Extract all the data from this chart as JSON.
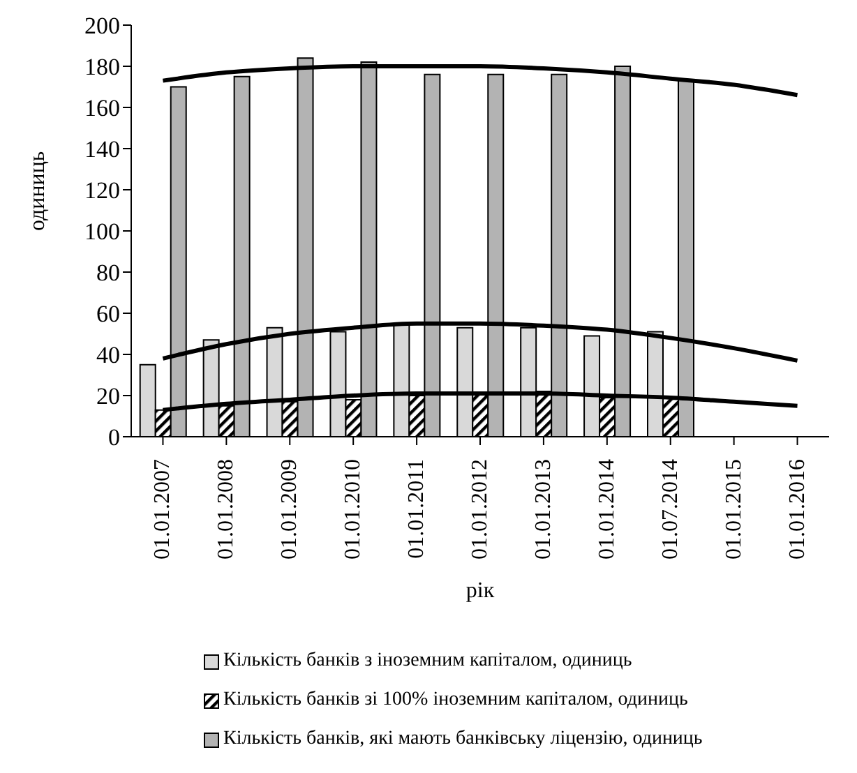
{
  "chart_data": {
    "type": "bar",
    "xlabel": "рік",
    "ylabel": "одиниць",
    "categories": [
      "01.01.2007",
      "01.01.2008",
      "01.01.2009",
      "01.01.2010",
      "01.01.2011",
      "01.01.2012",
      "01.01.2013",
      "01.01.2014",
      "01.07.2014",
      "01.01.2015",
      "01.01.2016"
    ],
    "series": [
      {
        "name": "Кількість банків з іноземним капіталом, одиниць",
        "color": "#d9d9d9",
        "values": [
          35,
          47,
          53,
          51,
          55,
          53,
          53,
          49,
          51,
          null,
          null
        ]
      },
      {
        "name": "Кількість банків зі 100% іноземним капіталом, одиниць",
        "color": "#000000",
        "values": [
          13,
          15,
          17,
          18,
          20,
          21,
          22,
          19,
          19,
          null,
          null
        ]
      },
      {
        "name": "Кількість банків, які мають банківську ліцензію, одиниць",
        "color": "#b3b3b3",
        "values": [
          170,
          175,
          184,
          182,
          176,
          176,
          176,
          180,
          173,
          null,
          null
        ]
      },
      {
        "type": "line",
        "color": "#000000",
        "values": [
          173,
          177,
          179,
          180,
          180,
          180,
          179,
          177,
          174,
          171,
          166
        ]
      },
      {
        "type": "line",
        "color": "#000000",
        "values": [
          38,
          45,
          50,
          53,
          55,
          55,
          54,
          52,
          48,
          43,
          37
        ]
      },
      {
        "type": "line",
        "color": "#000000",
        "values": [
          13,
          16,
          18,
          20,
          21,
          21,
          21,
          20,
          19,
          17,
          15
        ]
      }
    ],
    "ylim": [
      0,
      200
    ],
    "yticks": [
      0,
      20,
      40,
      60,
      80,
      100,
      120,
      140,
      160,
      180,
      200
    ],
    "grid": false,
    "legend": "bottom"
  }
}
